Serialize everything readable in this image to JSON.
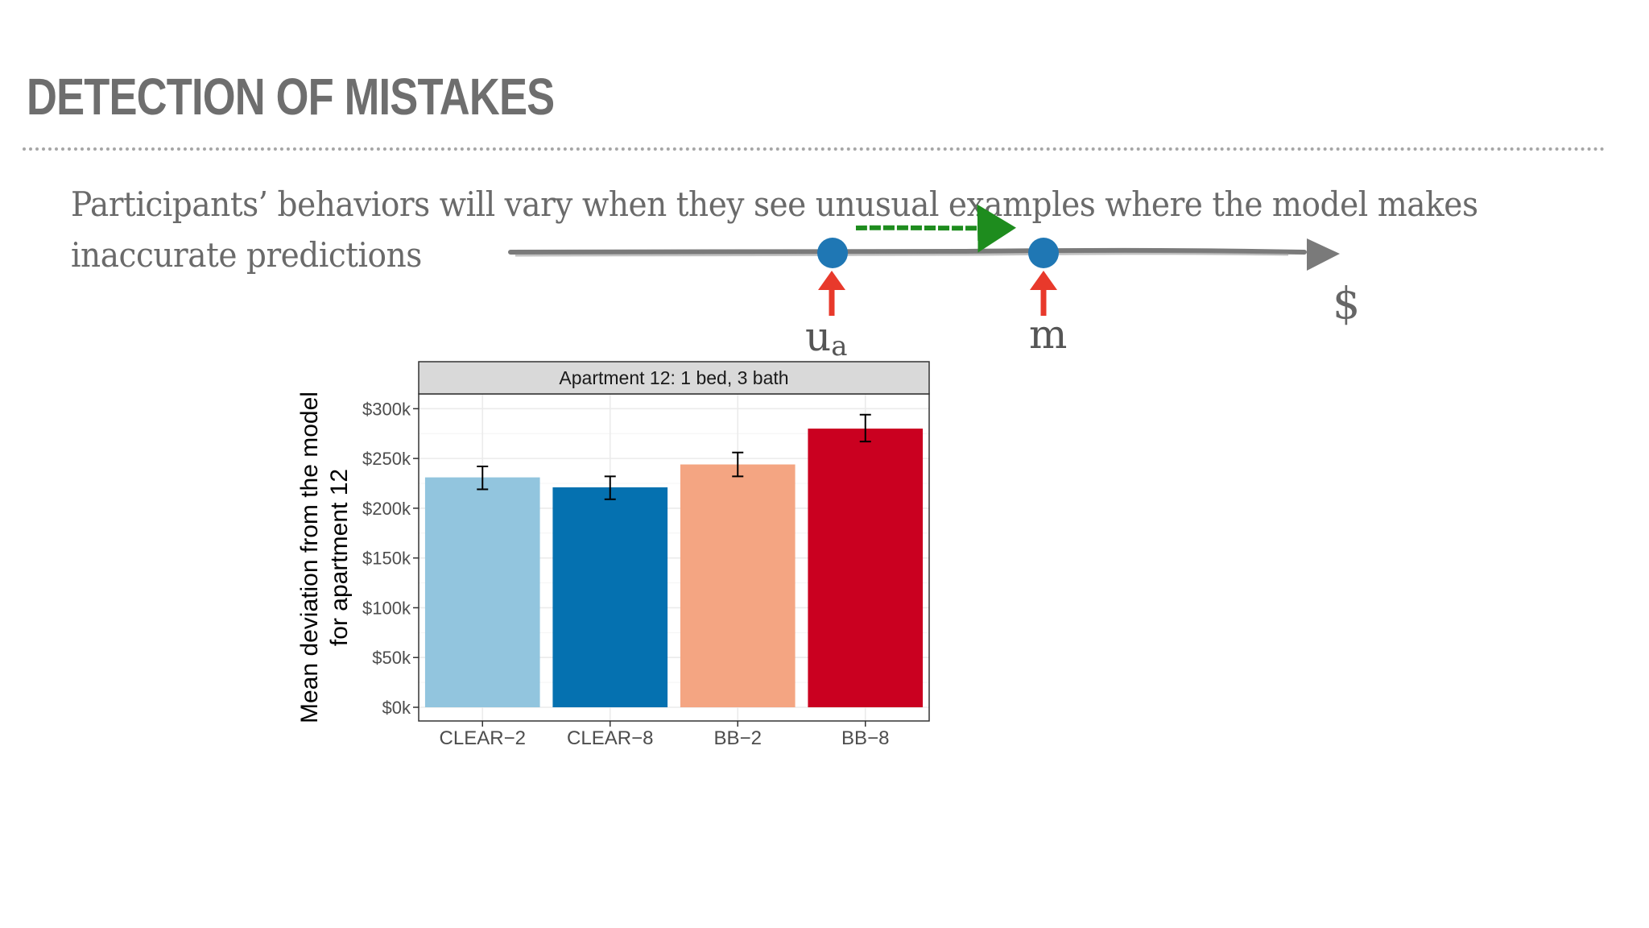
{
  "slide": {
    "title": "DETECTION OF MISTAKES",
    "body": "Participants’ behaviors will vary when they see unusual examples where the model makes inaccurate predictions"
  },
  "scale_diagram": {
    "markers": [
      {
        "label_main": "u",
        "label_sub": "a"
      },
      {
        "label_main": "m"
      }
    ],
    "axis_end_label": "$",
    "colors": {
      "line": "#7a7a7a",
      "dot": "#1f77b4",
      "arrow_up": "#e8392b",
      "arrow_shift": "#1e8c1e"
    }
  },
  "chart_data": {
    "type": "bar",
    "title": "Apartment 12: 1 bed, 3 bath",
    "ylabel": "Mean deviation from the model\nfor apartment 12",
    "xlabel": "",
    "ylim": [
      0,
      310000
    ],
    "yticks": [
      0,
      50000,
      100000,
      150000,
      200000,
      250000,
      300000
    ],
    "ytick_labels": [
      "$0k",
      "$50k",
      "$100k",
      "$150k",
      "$200k",
      "$250k",
      "$300k"
    ],
    "categories": [
      "CLEAR−2",
      "CLEAR−8",
      "BB−2",
      "BB−8"
    ],
    "values": [
      231000,
      221000,
      244000,
      280000
    ],
    "error_low": [
      219000,
      209000,
      232000,
      267000
    ],
    "error_high": [
      242000,
      232000,
      256000,
      294000
    ],
    "colors": [
      "#92c5de",
      "#0571b0",
      "#f4a582",
      "#ca0020"
    ],
    "grid": true,
    "legend": "none"
  }
}
